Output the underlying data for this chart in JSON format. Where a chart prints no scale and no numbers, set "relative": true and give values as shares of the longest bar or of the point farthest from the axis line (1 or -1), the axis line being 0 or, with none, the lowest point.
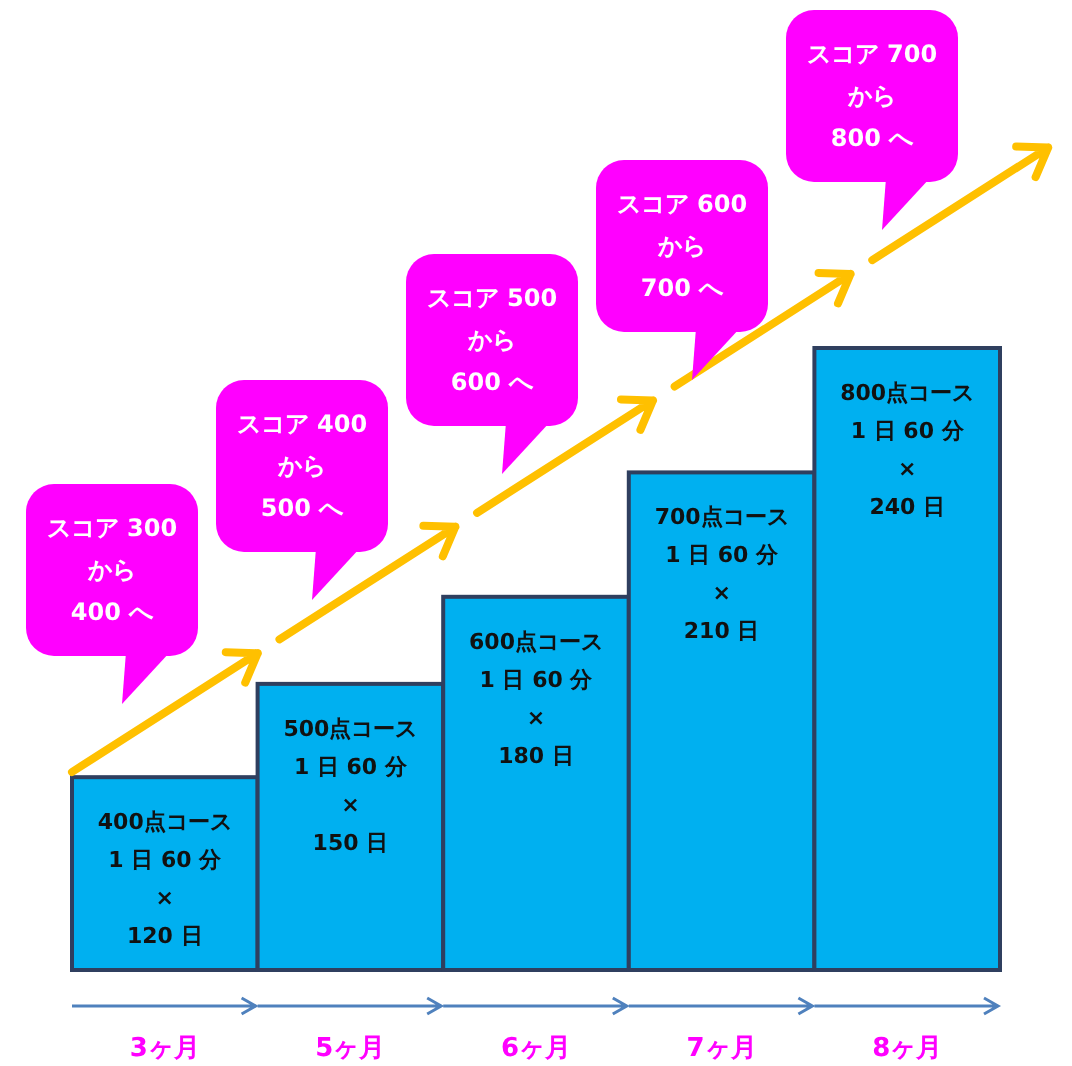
{
  "chart_data": {
    "type": "bar",
    "relative": true,
    "categories": [
      "3ヶ月",
      "5ヶ月",
      "6ヶ月",
      "7ヶ月",
      "8ヶ月"
    ],
    "series": [
      {
        "color": "#00b0f0",
        "values": [
          0.31,
          0.46,
          0.6,
          0.8,
          1
        ]
      }
    ],
    "value_labels": [
      "400点コース\n1 日 60 分\n×\n120 日",
      "500点コース\n1 日 60 分\n×\n150 日",
      "600点コース\n1 日 60 分\n×\n180 日",
      "700点コース\n1 日 60 分\n×\n210 日",
      "800点コース\n1 日 60 分\n×\n240 日"
    ],
    "annotations": [
      "スコア 300\nから\n400 へ",
      "スコア 400\nから\n500 へ",
      "スコア 500\nから\n600 へ",
      "スコア 600\nから\n700 へ",
      "スコア 700\nから\n800 へ"
    ]
  }
}
